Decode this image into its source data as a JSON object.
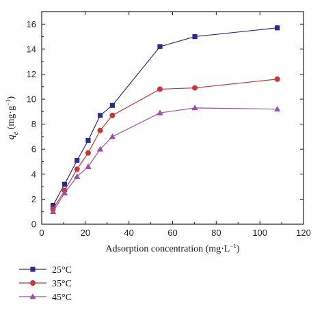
{
  "chart_data": {
    "type": "line",
    "xlabel": "Adsorption concentration (mg·L",
    "xlabel_sup": "−1",
    "xlabel_close": ")",
    "ylabel_q": "q",
    "ylabel_sub": "e",
    "ylabel_unit": " (mg·g",
    "ylabel_sup": "−1",
    "ylabel_close": ")",
    "xlim": [
      0,
      120
    ],
    "ylim": [
      0,
      17
    ],
    "xticks": [
      0,
      20,
      40,
      60,
      80,
      100,
      120
    ],
    "yticks": [
      0,
      2,
      4,
      6,
      8,
      10,
      12,
      14,
      16
    ],
    "grid": false,
    "legend_position": "bottom-left-outside",
    "series": [
      {
        "name": "25°C",
        "color": "#2b2b8f",
        "marker": "square",
        "x": [
          5.2,
          10.5,
          16.2,
          21.3,
          26.8,
          32.4,
          54.2,
          70.2,
          108.0
        ],
        "y": [
          1.5,
          3.2,
          5.1,
          6.7,
          8.7,
          9.5,
          14.2,
          15.0,
          15.7
        ]
      },
      {
        "name": "35°C",
        "color": "#cc3333",
        "marker": "circle",
        "x": [
          5.2,
          10.5,
          16.2,
          21.3,
          26.8,
          32.4,
          54.2,
          70.2,
          108.0
        ],
        "y": [
          1.2,
          2.7,
          4.4,
          5.7,
          7.5,
          8.7,
          10.8,
          10.9,
          11.6
        ]
      },
      {
        "name": "45°C",
        "color": "#9b4fa8",
        "marker": "triangle",
        "x": [
          5.2,
          10.5,
          16.2,
          21.3,
          26.8,
          32.4,
          54.2,
          70.2,
          108.0
        ],
        "y": [
          1.0,
          2.5,
          3.8,
          4.6,
          6.0,
          7.0,
          8.9,
          9.3,
          9.2
        ]
      }
    ]
  }
}
